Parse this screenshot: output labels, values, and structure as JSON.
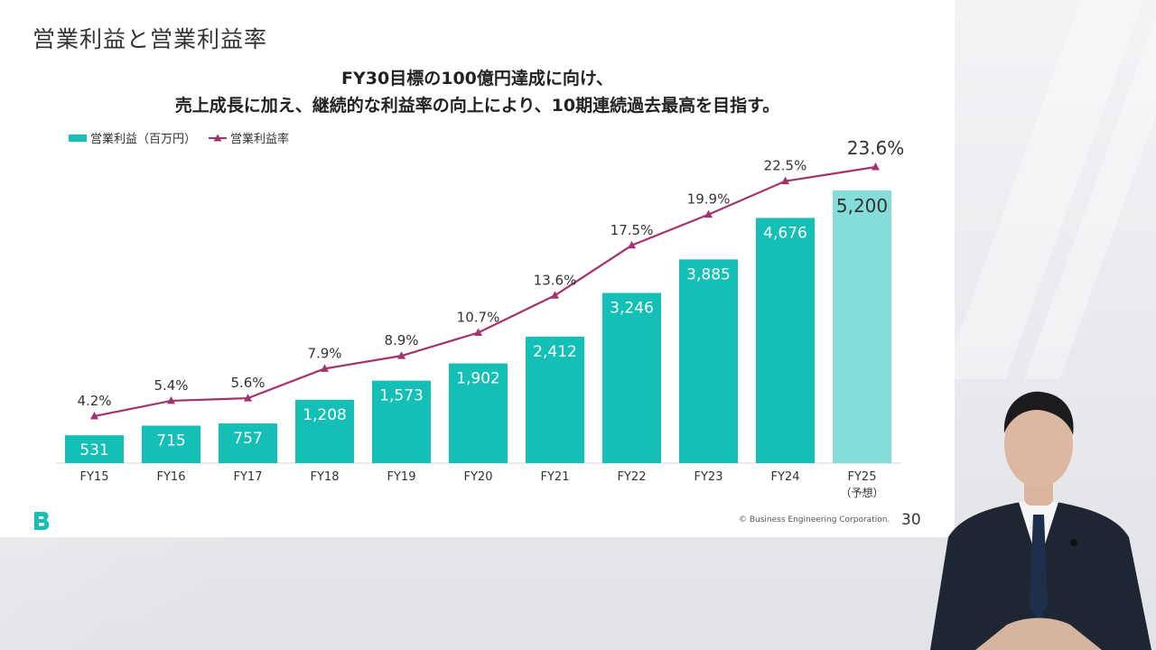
{
  "slide": {
    "title": "営業利益と営業利益率",
    "subtitle_line1": "FY30目標の100億円達成に向け、",
    "subtitle_line2": "売上成長に加え、継続的な利益率の向上により、10期連続過去最高を目指す。",
    "footer": "© Business Engineering Corporation.",
    "page_number": "30"
  },
  "legend": {
    "bar_label": "営業利益（百万円）",
    "line_label": "営業利益率"
  },
  "colors": {
    "bar": "#14bfb5",
    "bar_forecast": "#84ddd8",
    "line": "#a3336e",
    "logo": "#14bfb5"
  },
  "chart_data": {
    "type": "bar",
    "categories": [
      "FY15",
      "FY16",
      "FY17",
      "FY18",
      "FY19",
      "FY20",
      "FY21",
      "FY22",
      "FY23",
      "FY24",
      "FY25"
    ],
    "category_notes": [
      "",
      "",
      "",
      "",
      "",
      "",
      "",
      "",
      "",
      "",
      "（予想）"
    ],
    "series": [
      {
        "name": "営業利益（百万円）",
        "type": "bar",
        "values": [
          531,
          715,
          757,
          1208,
          1573,
          1902,
          2412,
          3246,
          3885,
          4676,
          5200
        ],
        "labels": [
          "531",
          "715",
          "757",
          "1,208",
          "1,573",
          "1,902",
          "2,412",
          "3,246",
          "3,885",
          "4,676",
          "5,200"
        ]
      },
      {
        "name": "営業利益率",
        "type": "line",
        "values": [
          4.2,
          5.4,
          5.6,
          7.9,
          8.9,
          10.7,
          13.6,
          17.5,
          19.9,
          22.5,
          23.6
        ],
        "labels": [
          "4.2%",
          "5.4%",
          "5.6%",
          "7.9%",
          "8.9%",
          "10.7%",
          "13.6%",
          "17.5%",
          "19.9%",
          "22.5%",
          "23.6%"
        ]
      }
    ],
    "forecast_index": 10,
    "bar_ylim": [
      0,
      5750
    ],
    "line_ylim": [
      -1,
      24.7
    ],
    "grid": false,
    "legend_position": "top-left"
  }
}
